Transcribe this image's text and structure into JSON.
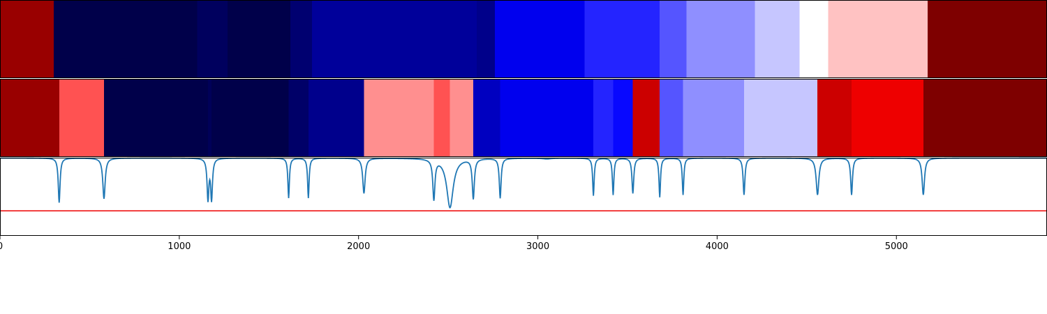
{
  "chart_data": {
    "type": "heatmap",
    "title": "",
    "xlabel": "",
    "ylabel": "",
    "xlim": [
      0,
      5840
    ],
    "xticks": [
      {
        "value": 0,
        "label": "0"
      },
      {
        "value": 1000,
        "label": "1000"
      },
      {
        "value": 2000,
        "label": "2000"
      },
      {
        "value": 3000,
        "label": "3000"
      },
      {
        "value": 4000,
        "label": "4000"
      },
      {
        "value": 5000,
        "label": "5000"
      }
    ],
    "rows": [
      {
        "segments": [
          {
            "start": 0,
            "end": 300,
            "color": "#990000"
          },
          {
            "start": 300,
            "end": 1100,
            "color": "#00004a"
          },
          {
            "start": 1100,
            "end": 1270,
            "color": "#00005e"
          },
          {
            "start": 1270,
            "end": 1620,
            "color": "#00004a"
          },
          {
            "start": 1620,
            "end": 1740,
            "color": "#000070"
          },
          {
            "start": 1740,
            "end": 2660,
            "color": "#00009a"
          },
          {
            "start": 2660,
            "end": 2760,
            "color": "#00008a"
          },
          {
            "start": 2760,
            "end": 3260,
            "color": "#0000ee"
          },
          {
            "start": 3260,
            "end": 3680,
            "color": "#2424ff"
          },
          {
            "start": 3680,
            "end": 3830,
            "color": "#5555ff"
          },
          {
            "start": 3830,
            "end": 4210,
            "color": "#8f8fff"
          },
          {
            "start": 4210,
            "end": 4460,
            "color": "#c6c6ff"
          },
          {
            "start": 4460,
            "end": 4620,
            "color": "#ffffff"
          },
          {
            "start": 4620,
            "end": 5175,
            "color": "#ffc2c2"
          },
          {
            "start": 5175,
            "end": 5840,
            "color": "#7e0000"
          }
        ]
      },
      {
        "segments": [
          {
            "start": 0,
            "end": 330,
            "color": "#990000"
          },
          {
            "start": 330,
            "end": 580,
            "color": "#ff5252"
          },
          {
            "start": 580,
            "end": 1160,
            "color": "#00004a"
          },
          {
            "start": 1160,
            "end": 1180,
            "color": "#000058"
          },
          {
            "start": 1180,
            "end": 1610,
            "color": "#00004a"
          },
          {
            "start": 1610,
            "end": 1720,
            "color": "#000068"
          },
          {
            "start": 1720,
            "end": 2030,
            "color": "#00008c"
          },
          {
            "start": 2030,
            "end": 2420,
            "color": "#ff8f8f"
          },
          {
            "start": 2420,
            "end": 2510,
            "color": "#ff5252"
          },
          {
            "start": 2510,
            "end": 2640,
            "color": "#ff8f8f"
          },
          {
            "start": 2640,
            "end": 2790,
            "color": "#0000c0"
          },
          {
            "start": 2790,
            "end": 3310,
            "color": "#0000ee"
          },
          {
            "start": 3310,
            "end": 3420,
            "color": "#2424ff"
          },
          {
            "start": 3420,
            "end": 3530,
            "color": "#0808ff"
          },
          {
            "start": 3530,
            "end": 3680,
            "color": "#cc0000"
          },
          {
            "start": 3680,
            "end": 3810,
            "color": "#5555ff"
          },
          {
            "start": 3810,
            "end": 4150,
            "color": "#8f8fff"
          },
          {
            "start": 4150,
            "end": 4560,
            "color": "#c6c6ff"
          },
          {
            "start": 4560,
            "end": 4750,
            "color": "#cc0000"
          },
          {
            "start": 4750,
            "end": 5150,
            "color": "#ee0000"
          },
          {
            "start": 5150,
            "end": 5840,
            "color": "#7e0000"
          }
        ]
      }
    ],
    "line_panel": {
      "ylim": [
        0,
        1
      ],
      "line_color": "#1f77b4",
      "threshold": {
        "value": 0.32,
        "color": "#ee0000"
      },
      "baseline": 0.995,
      "dips": [
        {
          "x": 330,
          "depth": 0.57,
          "width": 6
        },
        {
          "x": 580,
          "depth": 0.52,
          "width": 8
        },
        {
          "x": 1160,
          "depth": 0.52,
          "width": 6
        },
        {
          "x": 1180,
          "depth": 0.52,
          "width": 6
        },
        {
          "x": 1610,
          "depth": 0.51,
          "width": 5
        },
        {
          "x": 1720,
          "depth": 0.51,
          "width": 5
        },
        {
          "x": 2030,
          "depth": 0.45,
          "width": 8
        },
        {
          "x": 2420,
          "depth": 0.51,
          "width": 7
        },
        {
          "x": 2510,
          "depth": 0.63,
          "width": 22
        },
        {
          "x": 2640,
          "depth": 0.51,
          "width": 7
        },
        {
          "x": 2790,
          "depth": 0.51,
          "width": 6
        },
        {
          "x": 3050,
          "depth": 0.01,
          "width": 25
        },
        {
          "x": 3310,
          "depth": 0.48,
          "width": 5
        },
        {
          "x": 3420,
          "depth": 0.47,
          "width": 5
        },
        {
          "x": 3530,
          "depth": 0.45,
          "width": 6
        },
        {
          "x": 3680,
          "depth": 0.5,
          "width": 5
        },
        {
          "x": 3810,
          "depth": 0.47,
          "width": 5
        },
        {
          "x": 4150,
          "depth": 0.47,
          "width": 6
        },
        {
          "x": 4560,
          "depth": 0.47,
          "width": 9
        },
        {
          "x": 4750,
          "depth": 0.47,
          "width": 6
        },
        {
          "x": 5150,
          "depth": 0.47,
          "width": 8
        }
      ]
    }
  }
}
